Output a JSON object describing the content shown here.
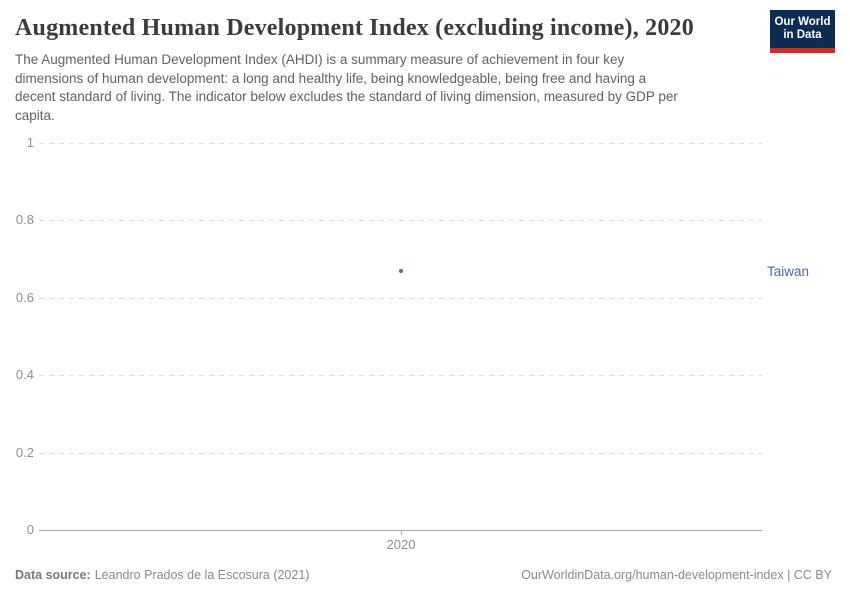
{
  "header": {
    "title": "Augmented Human Development Index (excluding income), 2020",
    "subtitle_lines": [
      "The Augmented Human Development Index (AHDI) is a summary measure of achievement in four key",
      "dimensions of human development: a long and healthy life, being knowledgeable, being free and having a",
      "decent standard of living. The indicator below excludes the standard of living dimension, measured by GDP per",
      "capita."
    ],
    "logo": {
      "line1": "Our World",
      "line2": "in Data",
      "bg_color": "#0c2d53",
      "accent_color": "#d8271f"
    }
  },
  "chart_data": {
    "type": "scatter",
    "title": "Augmented Human Development Index (excluding income), 2020",
    "x": [
      2020
    ],
    "xtick_labels": [
      "2020"
    ],
    "categories": [
      "Taiwan"
    ],
    "series": [
      {
        "name": "Taiwan",
        "values": [
          0.67
        ],
        "color": "#4c69a5",
        "label_color": "#4c6a9c"
      }
    ],
    "xlabel": "",
    "ylabel": "",
    "ylim": [
      0,
      1
    ],
    "yticks": [
      0,
      0.2,
      0.4,
      0.6,
      0.8,
      1
    ],
    "ytick_labels": [
      "0",
      "0.2",
      "0.4",
      "0.6",
      "0.8",
      "1"
    ],
    "grid": "horizontal-dashed",
    "legend": "entity-label-right"
  },
  "footer": {
    "datasource_label": "Data source:",
    "datasource_value": "Leandro Prados de la Escosura (2021)",
    "attribution": "OurWorldinData.org/human-development-index | CC BY"
  }
}
